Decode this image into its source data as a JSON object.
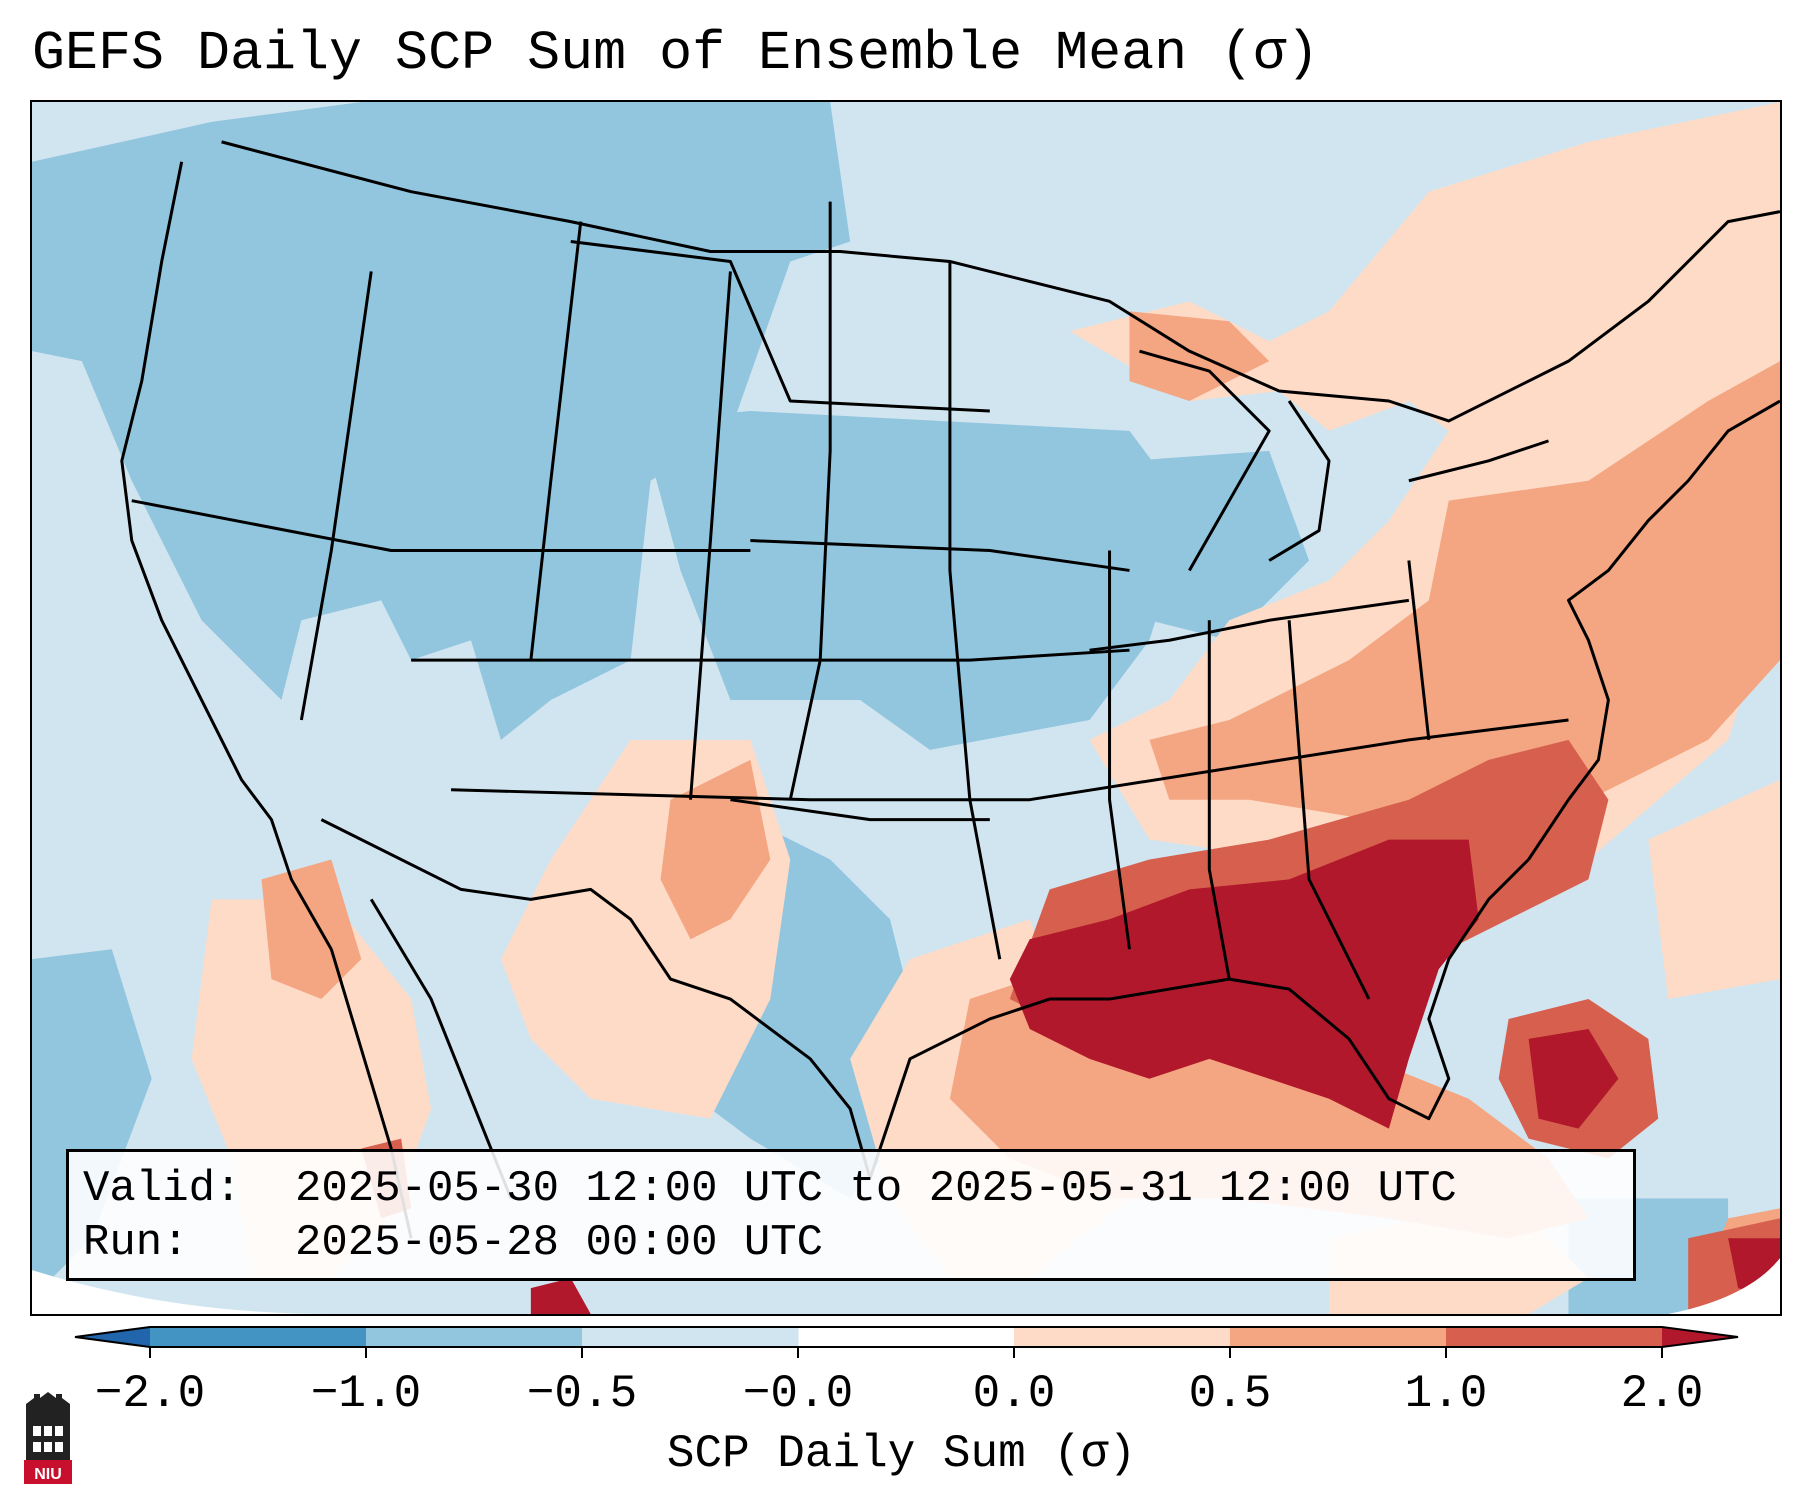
{
  "title": "GEFS Daily SCP Sum of Ensemble Mean (σ)",
  "info": {
    "valid_key": "Valid:",
    "valid_value": "2025-05-30 12:00 UTC to 2025-05-31 12:00 UTC",
    "run_key": "Run:",
    "run_value": "2025-05-28 00:00 UTC"
  },
  "colorbar": {
    "label": "SCP Daily Sum (σ)",
    "tick_labels": [
      "−2.0",
      "−1.0",
      "−0.5",
      "−0.0",
      "0.0",
      "0.5",
      "1.0",
      "2.0"
    ],
    "bin_colors": [
      "#4393c3",
      "#92c5de",
      "#d1e5f0",
      "#fddbc7",
      "#f4a582",
      "#d6604d"
    ],
    "under_color": "#2166ac",
    "over_color": "#b2182b"
  },
  "palette": {
    "deep_blue": "#4393c3",
    "mid_blue": "#92c5de",
    "light_blue": "#d1e5f0",
    "light_red": "#fddbc7",
    "salmon": "#f4a582",
    "red": "#d6604d",
    "dark_red": "#b2182b"
  },
  "logo": {
    "text": "NIU",
    "color": "#c8102e"
  }
}
